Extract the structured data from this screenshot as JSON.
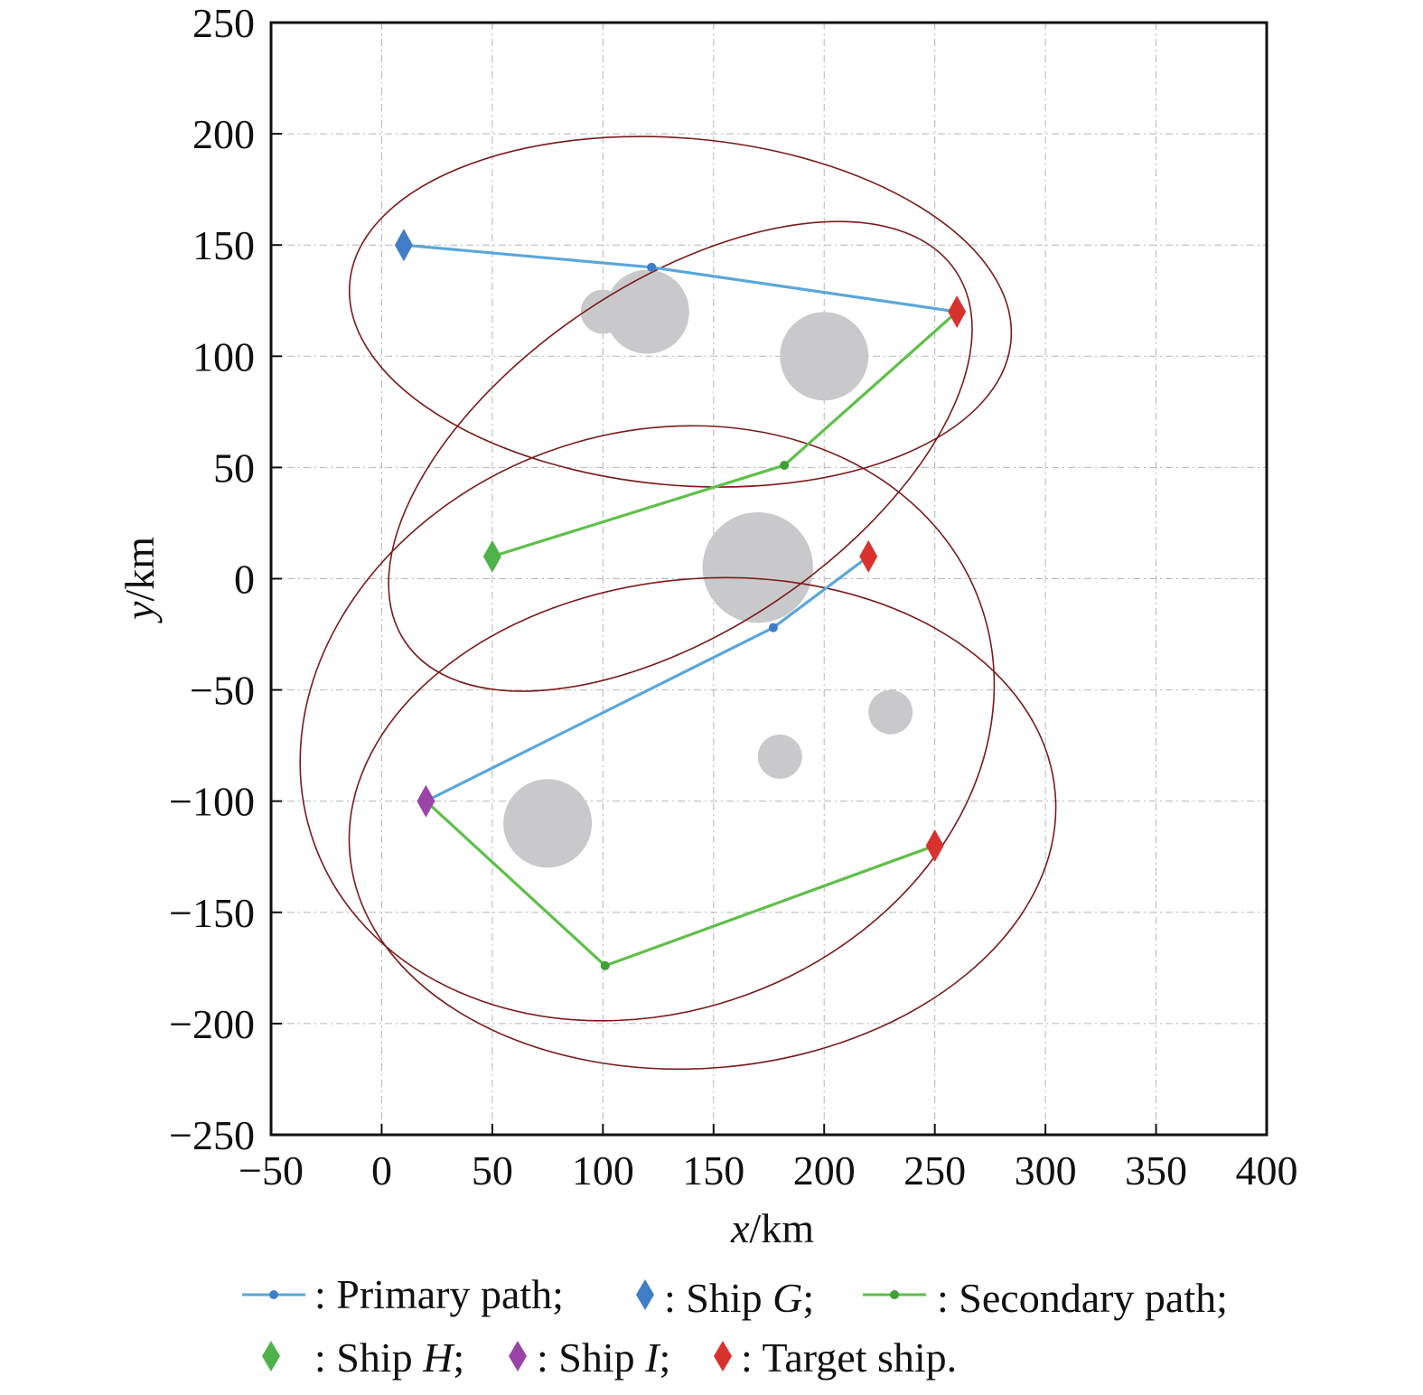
{
  "chart_data": {
    "type": "scatter",
    "xlabel": {
      "var": "x",
      "unit": "/km"
    },
    "ylabel": {
      "var": "y",
      "unit": "/km"
    },
    "xlim": [
      -50,
      400
    ],
    "ylim": [
      -250,
      250
    ],
    "xticks": [
      -50,
      0,
      50,
      100,
      150,
      200,
      250,
      300,
      350,
      400
    ],
    "yticks": [
      -250,
      -200,
      -150,
      -100,
      -50,
      0,
      50,
      100,
      150,
      200,
      250
    ],
    "xtick_labels": [
      "−50",
      "0",
      "50",
      "100",
      "150",
      "200",
      "250",
      "300",
      "350",
      "400"
    ],
    "ytick_labels": [
      "−250",
      "−200",
      "−150",
      "−100",
      "−50",
      "0",
      "50",
      "100",
      "150",
      "200",
      "250"
    ],
    "grid": true,
    "obstacles": [
      {
        "x": 100,
        "y": 120,
        "r": 10
      },
      {
        "x": 120,
        "y": 120,
        "r": 19
      },
      {
        "x": 200,
        "y": 100,
        "r": 20
      },
      {
        "x": 170,
        "y": 5,
        "r": 25
      },
      {
        "x": 230,
        "y": -60,
        "r": 10
      },
      {
        "x": 180,
        "y": -80,
        "r": 10
      },
      {
        "x": 75,
        "y": -110,
        "r": 20
      }
    ],
    "ellipses": [
      {
        "cx": 135,
        "cy": 120,
        "rx": 150,
        "ry": 78,
        "angle": -5
      },
      {
        "cx": 135,
        "cy": 55,
        "rx": 150,
        "ry": 78,
        "angle": 34
      },
      {
        "cx": 120,
        "cy": -65,
        "rx": 160,
        "ry": 130,
        "angle": 20
      },
      {
        "cx": 145,
        "cy": -110,
        "rx": 160,
        "ry": 110,
        "angle": 5
      }
    ],
    "series": [
      {
        "kind": "primary",
        "color": "#5aa7d9",
        "points": [
          [
            10,
            150
          ],
          [
            122,
            140
          ],
          [
            260,
            120
          ]
        ]
      },
      {
        "kind": "primary",
        "color": "#5aa7d9",
        "points": [
          [
            20,
            -100
          ],
          [
            177,
            -22
          ],
          [
            220,
            10
          ]
        ]
      },
      {
        "kind": "secondary",
        "color": "#5fbf4a",
        "points": [
          [
            260,
            120
          ],
          [
            182,
            51
          ],
          [
            50,
            10
          ]
        ]
      },
      {
        "kind": "secondary",
        "color": "#5fbf4a",
        "points": [
          [
            20,
            -100
          ],
          [
            101,
            -174
          ],
          [
            250,
            -120
          ]
        ]
      }
    ],
    "ships": [
      {
        "kind": "G",
        "color": "#3f7ec6",
        "x": 10,
        "y": 150
      },
      {
        "kind": "H",
        "color": "#4db34a",
        "x": 50,
        "y": 10
      },
      {
        "kind": "I",
        "color": "#9a44a8",
        "x": 20,
        "y": -100
      },
      {
        "kind": "target",
        "color": "#d8322e",
        "x": 260,
        "y": 120
      },
      {
        "kind": "target",
        "color": "#d8322e",
        "x": 220,
        "y": 10
      },
      {
        "kind": "target",
        "color": "#d8322e",
        "x": 250,
        "y": -120
      }
    ],
    "legend": {
      "primary": ": Primary path;",
      "ship_g_prefix": ": Ship ",
      "ship_g_var": "G",
      "ship_g_suffix": ";",
      "secondary": ": Secondary path;",
      "ship_h_prefix": ": Ship ",
      "ship_h_var": "H",
      "ship_h_suffix": ";",
      "ship_i_prefix": ": Ship ",
      "ship_i_var": "I",
      "ship_i_suffix": ";",
      "target": ": Target ship."
    },
    "colors": {
      "primary": "#5aa7d9",
      "primary_marker": "#3f7ec6",
      "secondary": "#5fbf4a",
      "secondary_marker": "#3e9f33",
      "ellipse": "#7a1a1a",
      "obstacle": "#c9c9cb",
      "grid": "#b5b5b5"
    }
  }
}
